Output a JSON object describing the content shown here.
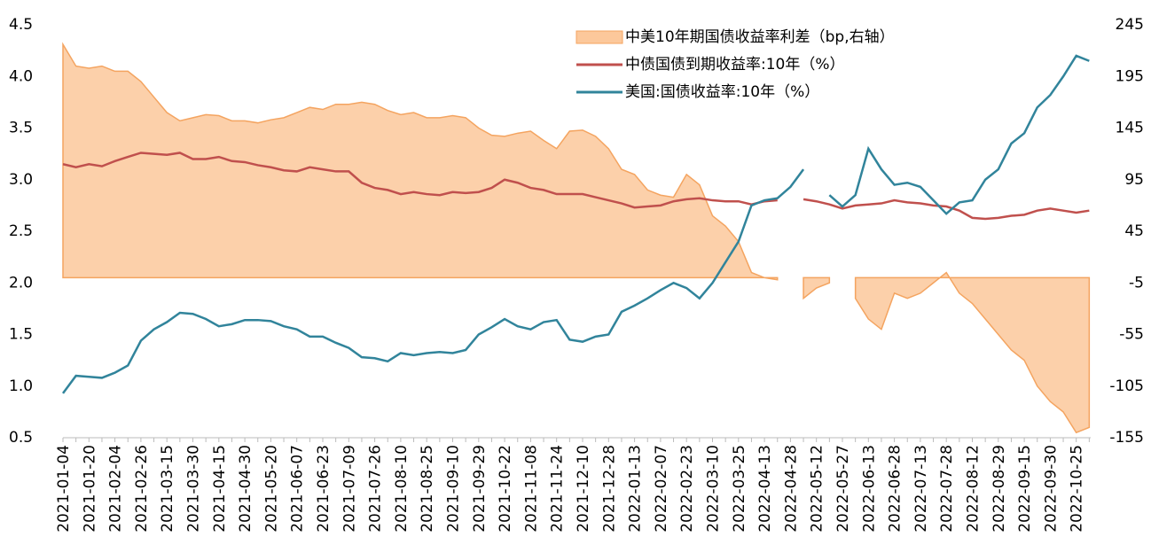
{
  "chart_data": {
    "type": "line",
    "categories": [
      "2021-01-04",
      null,
      "2021-01-20",
      null,
      "2021-02-04",
      null,
      "2021-02-26",
      null,
      "2021-03-15",
      null,
      "2021-03-30",
      null,
      "2021-04-15",
      null,
      "2021-04-30",
      null,
      "2021-05-20",
      null,
      "2021-06-07",
      null,
      "2021-06-23",
      null,
      "2021-07-09",
      null,
      "2021-07-26",
      null,
      "2021-08-10",
      null,
      "2021-08-25",
      null,
      "2021-09-10",
      null,
      "2021-09-29",
      null,
      "2021-10-22",
      null,
      "2021-11-08",
      null,
      "2021-11-24",
      null,
      "2021-12-10",
      null,
      "2021-12-28",
      null,
      "2022-01-13",
      null,
      "2022-02-07",
      null,
      "2022-02-23",
      null,
      "2022-03-10",
      null,
      "2022-03-25",
      null,
      "2022-04-13",
      null,
      "2022-04-28",
      null,
      "2022-05-12",
      null,
      "2022-05-27",
      null,
      "2022-06-13",
      null,
      "2022-06-28",
      null,
      "2022-07-13",
      null,
      "2022-07-28",
      null,
      "2022-08-12",
      null,
      "2022-08-29",
      null,
      "2022-09-15",
      null,
      "2022-09-30",
      null,
      "2022-10-25",
      null
    ],
    "series": [
      {
        "name": "中美10年期国债收益率利差（bp,右轴）",
        "kind": "area",
        "axis": "y2",
        "color": "#f4a460",
        "fill": "#fcc89b",
        "values": [
          226,
          205,
          203,
          205,
          200,
          200,
          190,
          175,
          160,
          152,
          155,
          158,
          157,
          152,
          152,
          150,
          153,
          155,
          160,
          165,
          163,
          168,
          168,
          170,
          168,
          162,
          158,
          160,
          155,
          155,
          157,
          155,
          145,
          138,
          137,
          140,
          142,
          133,
          125,
          142,
          143,
          137,
          125,
          105,
          100,
          85,
          80,
          78,
          100,
          90,
          60,
          50,
          35,
          5,
          0,
          -2,
          null,
          -20,
          -10,
          -5,
          null,
          -20,
          -40,
          -50,
          -15,
          -20,
          -15,
          -5,
          5,
          -15,
          -25,
          -40,
          -55,
          -70,
          -80,
          -105,
          -120,
          -130,
          -150,
          -145
        ]
      },
      {
        "name": "中债国债到期收益率:10年（%）",
        "kind": "line",
        "color": "#c0504d",
        "values": [
          3.15,
          3.12,
          3.15,
          3.13,
          3.18,
          3.22,
          3.26,
          3.25,
          3.24,
          3.26,
          3.2,
          3.2,
          3.22,
          3.18,
          3.17,
          3.14,
          3.12,
          3.09,
          3.08,
          3.12,
          3.1,
          3.08,
          3.08,
          2.97,
          2.92,
          2.9,
          2.86,
          2.88,
          2.86,
          2.85,
          2.88,
          2.87,
          2.88,
          2.92,
          3.0,
          2.97,
          2.92,
          2.9,
          2.86,
          2.86,
          2.86,
          2.83,
          2.8,
          2.77,
          2.73,
          2.74,
          2.75,
          2.79,
          2.81,
          2.82,
          2.8,
          2.79,
          2.79,
          2.76,
          2.79,
          2.8,
          null,
          2.81,
          2.79,
          2.76,
          2.72,
          2.75,
          2.76,
          2.77,
          2.8,
          2.78,
          2.77,
          2.75,
          2.74,
          2.7,
          2.63,
          2.62,
          2.63,
          2.65,
          2.66,
          2.7,
          2.72,
          2.7,
          2.68,
          2.7
        ]
      },
      {
        "name": "美国:国债收益率:10年（%）",
        "kind": "line",
        "color": "#31849b",
        "values": [
          0.93,
          1.1,
          1.09,
          1.08,
          1.13,
          1.2,
          1.44,
          1.55,
          1.62,
          1.71,
          1.7,
          1.65,
          1.58,
          1.6,
          1.64,
          1.64,
          1.63,
          1.58,
          1.55,
          1.48,
          1.48,
          1.42,
          1.37,
          1.28,
          1.27,
          1.24,
          1.32,
          1.3,
          1.32,
          1.33,
          1.32,
          1.35,
          1.5,
          1.57,
          1.65,
          1.58,
          1.55,
          1.62,
          1.64,
          1.45,
          1.43,
          1.48,
          1.5,
          1.72,
          1.78,
          1.85,
          1.93,
          2.0,
          1.95,
          1.85,
          2.0,
          2.2,
          2.4,
          2.75,
          2.8,
          2.82,
          2.93,
          3.1,
          null,
          2.85,
          2.74,
          2.85,
          3.3,
          3.1,
          2.95,
          2.97,
          2.93,
          2.8,
          2.67,
          2.78,
          2.8,
          3.0,
          3.1,
          3.35,
          3.45,
          3.7,
          3.82,
          4.0,
          4.2,
          4.15
        ]
      }
    ],
    "ylim": [
      0.5,
      4.5
    ],
    "yticks": [
      0.5,
      {
        "value": 1,
        "label": "1.0"
      },
      1.5,
      {
        "value": 2,
        "label": "2.0"
      },
      2.5,
      {
        "value": 3,
        "label": "3.0"
      },
      3.5,
      {
        "value": 4,
        "label": "4.0"
      },
      4.5
    ],
    "y2lim": [
      -155,
      245
    ],
    "y2ticks": [
      -155,
      -105,
      -55,
      -5,
      45,
      95,
      145,
      195,
      245
    ],
    "legend": "top-right"
  }
}
